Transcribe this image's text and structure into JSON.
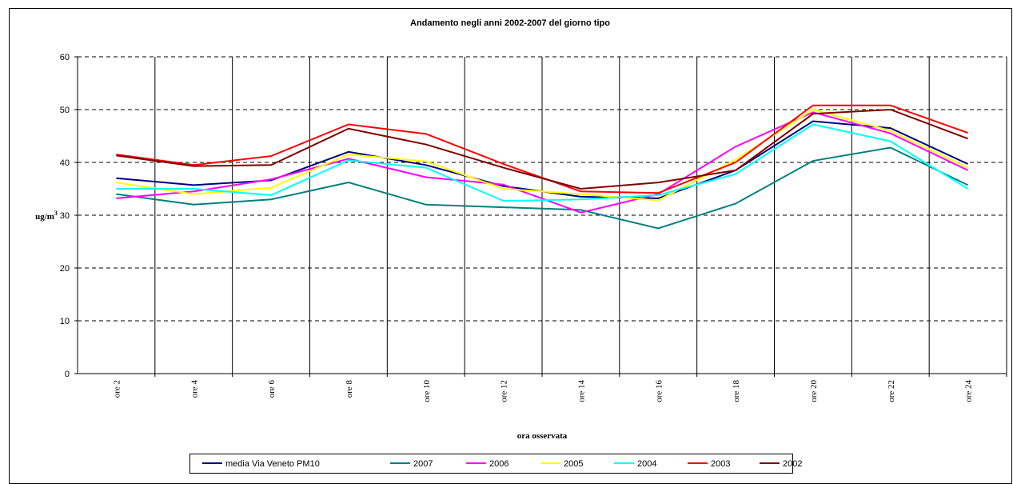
{
  "chart_data": {
    "type": "line",
    "title": "Andamento negli anni 2002-2007 del giorno tipo",
    "y_label": {
      "base": "ug/m",
      "sup": "3"
    },
    "x_label": "ora osservata",
    "categories": [
      "ore 2",
      "ore 4",
      "ore 6",
      "ore 8",
      "ore 10",
      "ore 12",
      "ore 14",
      "ore 16",
      "ore 18",
      "ore 20",
      "ore 22",
      "ore 24"
    ],
    "ylim": [
      0,
      60
    ],
    "yticks": [
      0,
      10,
      20,
      30,
      40,
      50,
      60
    ],
    "grid": true,
    "series": [
      {
        "name": "media Via Veneto PM10",
        "color": "#000080",
        "values": [
          37,
          35.7,
          36.6,
          42,
          39.5,
          35.5,
          33.5,
          33.2,
          38.5,
          47.8,
          46.5,
          39.7
        ]
      },
      {
        "name": "2007",
        "color": "#008080",
        "values": [
          34,
          32,
          33,
          36.2,
          32,
          31.5,
          31,
          27.5,
          32.2,
          40.3,
          42.8,
          35.7
        ]
      },
      {
        "name": "2006",
        "color": "#ff00ff",
        "values": [
          33.2,
          34.5,
          36.8,
          40.7,
          37.2,
          35.8,
          30.5,
          34,
          43,
          49.5,
          45.5,
          38.5
        ]
      },
      {
        "name": "2005",
        "color": "#ffff00",
        "values": [
          36.2,
          34,
          35.2,
          41.5,
          40.2,
          35,
          34,
          32.8,
          40.5,
          50,
          46,
          39
        ]
      },
      {
        "name": "2004",
        "color": "#00ffff",
        "values": [
          35,
          35,
          33.8,
          40.4,
          39,
          32.7,
          33,
          33.8,
          37.8,
          47.2,
          44,
          35
        ]
      },
      {
        "name": "2003",
        "color": "#ff0000",
        "values": [
          41.5,
          39.5,
          41.2,
          47.2,
          45.4,
          39.7,
          34.5,
          34.2,
          40,
          50.8,
          50.8,
          45.6
        ]
      },
      {
        "name": "2002",
        "color": "#800000",
        "values": [
          41.3,
          39.3,
          39.5,
          46.4,
          43.4,
          39,
          35,
          36.2,
          38.5,
          49.2,
          50,
          44.5
        ]
      }
    ]
  }
}
